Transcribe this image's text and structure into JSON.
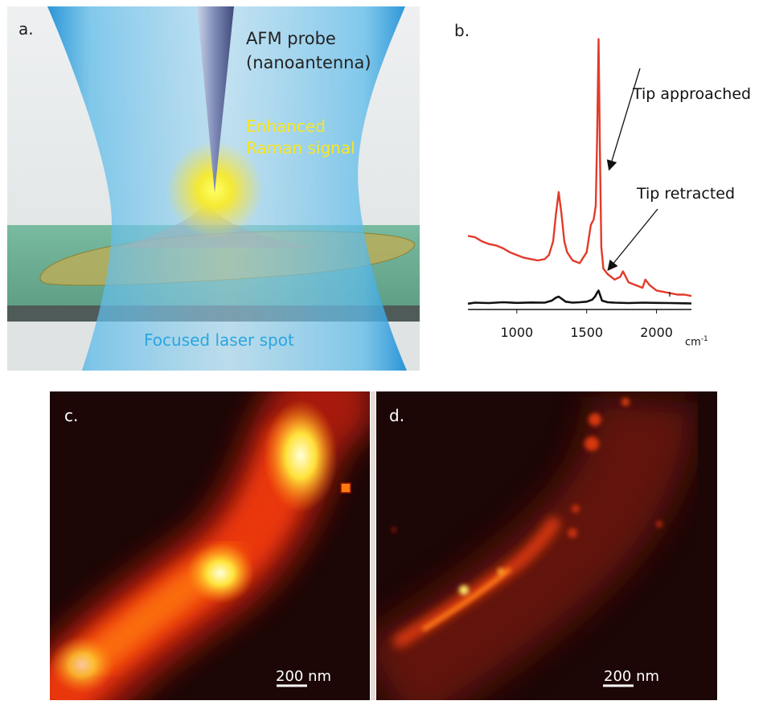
{
  "panel_a": {
    "label": "a.",
    "probe_line1": "AFM probe",
    "probe_line2": "(nanoantenna)",
    "signal_line1": "Enhanced",
    "signal_line2": "Raman signal",
    "spot_label": "Focused laser spot",
    "colors": {
      "beam": "#3fa9e0",
      "signal": "#f6e52a",
      "spot_text": "#2aa6e0",
      "substrate": "#6fb59a"
    }
  },
  "panel_b": {
    "label": "b.",
    "annotation_approached": "Tip approached",
    "annotation_retracted": "Tip retracted",
    "unit_label": "cm",
    "unit_exp": "-1"
  },
  "chart_data": {
    "type": "line",
    "x_ticks": [
      1000,
      1500,
      2000
    ],
    "xlim": [
      650,
      2250
    ],
    "ylim": [
      0,
      100
    ],
    "series": [
      {
        "color": "#e23b2a",
        "x": [
          650,
          700,
          750,
          800,
          850,
          900,
          950,
          1000,
          1050,
          1100,
          1150,
          1200,
          1230,
          1260,
          1280,
          1300,
          1320,
          1340,
          1360,
          1400,
          1450,
          1500,
          1530,
          1550,
          1565,
          1575,
          1585,
          1595,
          1605,
          1620,
          1650,
          1700,
          1740,
          1760,
          1800,
          1850,
          1900,
          1920,
          1950,
          2000,
          2050,
          2100,
          2150,
          2200,
          2250
        ],
        "y": [
          24,
          23.5,
          22,
          21,
          20.5,
          19.5,
          18,
          17,
          16,
          15.5,
          15,
          15.5,
          17,
          22,
          32,
          40,
          32,
          22,
          18,
          15,
          14,
          18,
          28,
          30,
          35,
          60,
          96,
          55,
          20,
          12,
          10,
          8,
          9,
          11,
          7,
          6,
          5,
          8,
          6,
          4,
          3.5,
          3,
          2.5,
          2.5,
          2
        ]
      },
      {
        "color": "#111111",
        "x": [
          650,
          700,
          800,
          900,
          1000,
          1100,
          1200,
          1250,
          1280,
          1300,
          1320,
          1350,
          1400,
          1450,
          1500,
          1540,
          1560,
          1575,
          1585,
          1595,
          1610,
          1650,
          1700,
          1800,
          1900,
          2000,
          2100,
          2200,
          2250
        ],
        "y": [
          0.5,
          1,
          0.8,
          1.2,
          0.9,
          1.1,
          1,
          2,
          3.5,
          4,
          3,
          1.5,
          1,
          1.2,
          1.5,
          2.5,
          4,
          6,
          7,
          5,
          2,
          1.2,
          1,
          0.8,
          1,
          0.9,
          0.8,
          0.7,
          0.6
        ]
      }
    ]
  },
  "panel_c": {
    "label": "c.",
    "scale_bar": "200 nm"
  },
  "panel_d": {
    "label": "d.",
    "scale_bar": "200 nm"
  }
}
